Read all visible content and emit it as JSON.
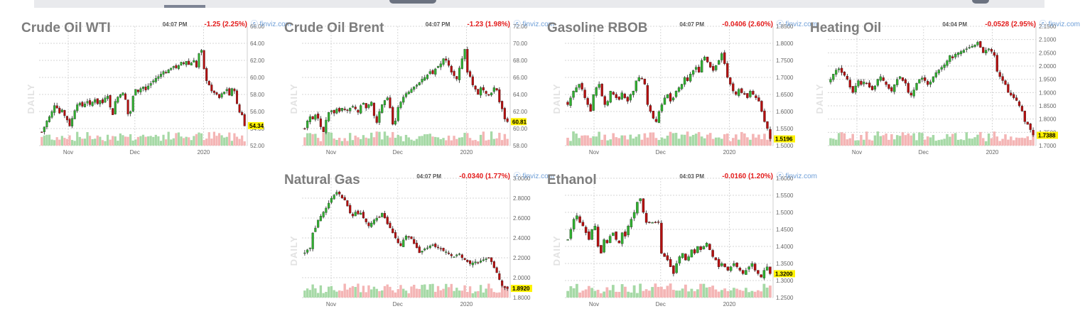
{
  "page": {
    "source_label": "ⓔ finviz.com",
    "period_label": "DAILY"
  },
  "colors": {
    "up": "#2fae2f",
    "down": "#b30f0f",
    "vol_up": "#a6d9a6",
    "vol_down": "#f4b5b5",
    "grid": "#d6d6d6",
    "last_bg": "#fff200"
  },
  "chart_data": [
    {
      "type": "candlestick",
      "title": "Crude Oil WTI",
      "time": "04:07 PM",
      "change": "-1.25 (2.25%)",
      "last": "54.34",
      "ylim": [
        52.0,
        66.0
      ],
      "yticks": [
        "66.00",
        "64.00",
        "62.00",
        "60.00",
        "58.00",
        "56.00",
        "54.00",
        "52.00"
      ],
      "xticks": [
        "Nov",
        "Dec",
        "2020"
      ],
      "closes": [
        53.6,
        54.2,
        54.9,
        55.4,
        56.0,
        56.7,
        56.4,
        55.8,
        56.2,
        55.5,
        55.0,
        54.3,
        55.2,
        56.1,
        56.8,
        57.0,
        56.6,
        56.9,
        57.2,
        56.8,
        57.1,
        57.4,
        56.9,
        57.3,
        57.0,
        57.6,
        57.8,
        56.5,
        55.6,
        57.2,
        57.7,
        58.0,
        58.2,
        57.4,
        55.7,
        56.0,
        57.8,
        58.6,
        58.3,
        58.7,
        58.9,
        58.5,
        59.0,
        59.3,
        59.6,
        59.9,
        60.1,
        60.4,
        60.7,
        60.5,
        60.9,
        61.1,
        61.3,
        61.1,
        61.4,
        61.8,
        61.6,
        61.9,
        61.5,
        61.7,
        62.0,
        61.2,
        62.8,
        63.2,
        61.0,
        59.6,
        59.1,
        58.4,
        58.2,
        58.0,
        57.6,
        58.1,
        58.3,
        58.6,
        57.9,
        58.7,
        58.4,
        56.9,
        55.9,
        55.6,
        54.3
      ]
    },
    {
      "type": "candlestick",
      "title": "Crude Oil Brent",
      "time": "04:07 PM",
      "change": "-1.23 (1.98%)",
      "last": "60.81",
      "ylim": [
        58.0,
        72.0
      ],
      "yticks": [
        "72.00",
        "70.00",
        "68.00",
        "66.00",
        "64.00",
        "62.00",
        "60.00",
        "58.00"
      ],
      "xticks": [
        "Nov",
        "Dec",
        "2020"
      ],
      "closes": [
        60.0,
        60.9,
        61.4,
        61.1,
        61.6,
        61.2,
        60.2,
        59.6,
        61.0,
        61.9,
        62.1,
        61.8,
        62.3,
        62.0,
        62.4,
        62.2,
        62.1,
        62.4,
        62.6,
        62.3,
        61.9,
        62.7,
        63.0,
        62.4,
        62.8,
        63.1,
        61.5,
        60.7,
        62.0,
        62.8,
        63.3,
        63.6,
        62.4,
        60.5,
        60.9,
        62.5,
        63.1,
        63.7,
        64.1,
        64.3,
        64.6,
        64.9,
        65.1,
        65.4,
        65.8,
        66.0,
        66.3,
        66.7,
        66.4,
        67.0,
        67.3,
        67.6,
        68.2,
        68.0,
        67.4,
        66.6,
        66.2,
        65.8,
        67.1,
        68.2,
        69.3,
        66.6,
        66.1,
        65.1,
        64.6,
        64.0,
        64.8,
        64.5,
        64.1,
        63.9,
        64.2,
        64.8,
        64.5,
        63.1,
        62.3,
        61.1,
        60.8
      ]
    },
    {
      "type": "candlestick",
      "title": "Gasoline RBOB",
      "time": "04:07 PM",
      "change": "-0.0406 (2.60%)",
      "last": "1.5196",
      "ylim": [
        1.5,
        1.85
      ],
      "yticks": [
        "1.8500",
        "1.8000",
        "1.7500",
        "1.7000",
        "1.6500",
        "1.6000",
        "1.5500",
        "1.5000"
      ],
      "xticks": [
        "Nov",
        "Dec",
        "2020"
      ],
      "closes": [
        1.62,
        1.64,
        1.66,
        1.67,
        1.68,
        1.665,
        1.64,
        1.62,
        1.6,
        1.65,
        1.67,
        1.68,
        1.645,
        1.62,
        1.63,
        1.66,
        1.65,
        1.64,
        1.635,
        1.655,
        1.64,
        1.63,
        1.65,
        1.66,
        1.69,
        1.7,
        1.695,
        1.68,
        1.62,
        1.6,
        1.58,
        1.57,
        1.6,
        1.62,
        1.64,
        1.65,
        1.63,
        1.64,
        1.66,
        1.67,
        1.68,
        1.7,
        1.69,
        1.71,
        1.72,
        1.73,
        1.715,
        1.75,
        1.76,
        1.745,
        1.73,
        1.72,
        1.735,
        1.75,
        1.77,
        1.74,
        1.7,
        1.68,
        1.66,
        1.65,
        1.665,
        1.655,
        1.65,
        1.64,
        1.66,
        1.65,
        1.64,
        1.63,
        1.6,
        1.57,
        1.55,
        1.52
      ]
    },
    {
      "type": "candlestick",
      "title": "Heating Oil",
      "time": "04:04 PM",
      "change": "-0.0528 (2.95%)",
      "last": "1.7388",
      "ylim": [
        1.7,
        2.15
      ],
      "yticks": [
        "2.1500",
        "2.1000",
        "2.0500",
        "2.0000",
        "1.9500",
        "1.9000",
        "1.8500",
        "1.8000",
        "1.7500",
        "1.7000"
      ],
      "xticks": [
        "Nov",
        "Dec",
        "2020"
      ],
      "closes": [
        1.95,
        1.97,
        1.985,
        1.99,
        1.975,
        1.965,
        1.95,
        1.92,
        1.9,
        1.925,
        1.945,
        1.93,
        1.94,
        1.935,
        1.92,
        1.91,
        1.925,
        1.95,
        1.96,
        1.945,
        1.93,
        1.915,
        1.905,
        1.93,
        1.95,
        1.96,
        1.945,
        1.935,
        1.9,
        1.89,
        1.91,
        1.935,
        1.95,
        1.955,
        1.945,
        1.93,
        1.94,
        1.96,
        1.975,
        1.985,
        1.995,
        2.005,
        2.02,
        2.04,
        2.03,
        2.045,
        2.05,
        2.055,
        2.06,
        2.065,
        2.07,
        2.075,
        2.08,
        2.09,
        2.07,
        2.05,
        2.06,
        2.065,
        2.055,
        2.04,
        1.98,
        1.96,
        1.945,
        1.93,
        1.9,
        1.89,
        1.88,
        1.87,
        1.85,
        1.83,
        1.79,
        1.78,
        1.76,
        1.74
      ]
    },
    {
      "type": "candlestick",
      "title": "Natural Gas",
      "time": "04:07 PM",
      "change": "-0.0340 (1.77%)",
      "last": "1.8920",
      "ylim": [
        1.8,
        3.0
      ],
      "yticks": [
        "3.0000",
        "2.8000",
        "2.6000",
        "2.4000",
        "2.2000",
        "2.0000",
        "1.8000"
      ],
      "xticks": [
        "Nov",
        "Dec",
        "2020"
      ],
      "closes": [
        2.25,
        2.28,
        2.3,
        2.45,
        2.5,
        2.58,
        2.62,
        2.66,
        2.7,
        2.75,
        2.8,
        2.83,
        2.86,
        2.84,
        2.8,
        2.78,
        2.72,
        2.65,
        2.62,
        2.66,
        2.64,
        2.65,
        2.6,
        2.56,
        2.52,
        2.55,
        2.58,
        2.6,
        2.61,
        2.65,
        2.6,
        2.54,
        2.5,
        2.45,
        2.4,
        2.35,
        2.32,
        2.38,
        2.42,
        2.41,
        2.39,
        2.34,
        2.3,
        2.25,
        2.27,
        2.29,
        2.3,
        2.32,
        2.33,
        2.31,
        2.3,
        2.29,
        2.27,
        2.26,
        2.24,
        2.22,
        2.21,
        2.23,
        2.24,
        2.2,
        2.18,
        2.16,
        2.14,
        2.15,
        2.16,
        2.15,
        2.17,
        2.18,
        2.19,
        2.2,
        2.16,
        2.1,
        2.05,
        1.98,
        1.92,
        1.9,
        1.89
      ]
    },
    {
      "type": "candlestick",
      "title": "Ethanol",
      "time": "04:03 PM",
      "change": "-0.0160 (1.20%)",
      "last": "1.3200",
      "ylim": [
        1.25,
        1.6
      ],
      "yticks": [
        "1.6000",
        "1.5500",
        "1.5000",
        "1.4500",
        "1.4000",
        "1.3500",
        "1.3000",
        "1.2500"
      ],
      "xticks": [
        "Nov",
        "Dec",
        "2020"
      ],
      "closes": [
        1.42,
        1.45,
        1.48,
        1.49,
        1.47,
        1.46,
        1.44,
        1.42,
        1.45,
        1.46,
        1.4,
        1.38,
        1.42,
        1.41,
        1.43,
        1.44,
        1.42,
        1.41,
        1.44,
        1.43,
        1.46,
        1.48,
        1.5,
        1.53,
        1.54,
        1.5,
        1.47,
        1.47,
        1.47,
        1.47,
        1.47,
        1.38,
        1.37,
        1.36,
        1.34,
        1.32,
        1.35,
        1.37,
        1.38,
        1.36,
        1.37,
        1.39,
        1.38,
        1.4,
        1.39,
        1.4,
        1.41,
        1.39,
        1.37,
        1.36,
        1.34,
        1.35,
        1.34,
        1.33,
        1.34,
        1.35,
        1.34,
        1.33,
        1.32,
        1.33,
        1.34,
        1.35,
        1.33,
        1.32,
        1.31,
        1.33,
        1.34,
        1.32
      ]
    }
  ]
}
